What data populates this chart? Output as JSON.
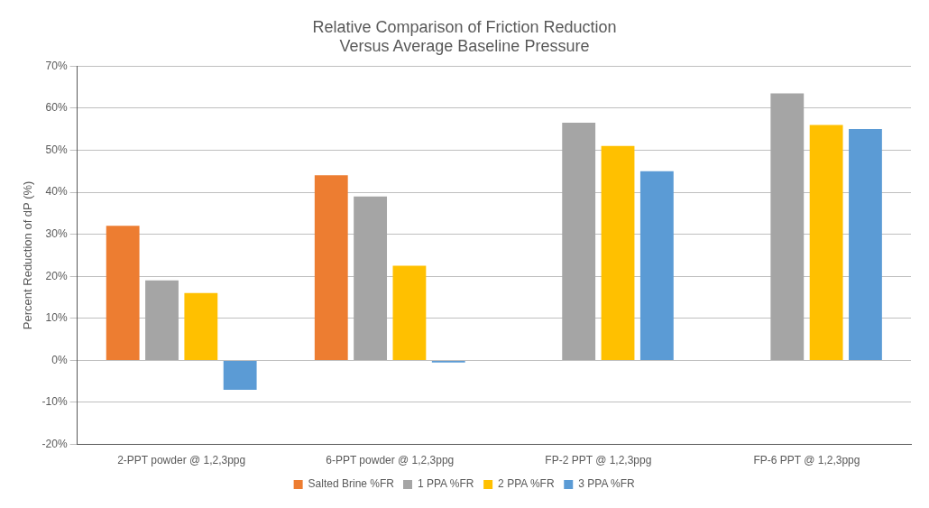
{
  "chart_data": {
    "type": "bar",
    "title": [
      "Relative Comparison of Friction Reduction",
      "Versus Average Baseline Pressure"
    ],
    "ylabel": "Percent Reduction of dP (%)",
    "categories": [
      "2-PPT powder @ 1,2,3ppg",
      "6-PPT powder @ 1,2,3ppg",
      "FP-2 PPT @ 1,2,3ppg",
      "FP-6 PPT @ 1,2,3ppg"
    ],
    "series": [
      {
        "name": "Salted Brine %FR",
        "color": "#ed7d31",
        "values": [
          32,
          44,
          null,
          null
        ]
      },
      {
        "name": "1 PPA %FR",
        "color": "#a5a5a5",
        "values": [
          19,
          39,
          56.5,
          63.5
        ]
      },
      {
        "name": "2 PPA %FR",
        "color": "#ffc000",
        "values": [
          16,
          22.5,
          51,
          56
        ]
      },
      {
        "name": "3 PPA %FR",
        "color": "#5b9bd5",
        "values": [
          -7,
          -0.5,
          45,
          55
        ]
      }
    ],
    "ylim": [
      -20,
      70
    ],
    "yticks": [
      {
        "value": -20,
        "label": "-20%"
      },
      {
        "value": -10,
        "label": "-10%"
      },
      {
        "value": 0,
        "label": "0%"
      },
      {
        "value": 10,
        "label": "10%"
      },
      {
        "value": 20,
        "label": "20%"
      },
      {
        "value": 30,
        "label": "30%"
      },
      {
        "value": 40,
        "label": "40%"
      },
      {
        "value": 50,
        "label": "50%"
      },
      {
        "value": 60,
        "label": "60%"
      },
      {
        "value": 70,
        "label": "70%"
      }
    ],
    "grid": "y",
    "legend": "bottom"
  }
}
